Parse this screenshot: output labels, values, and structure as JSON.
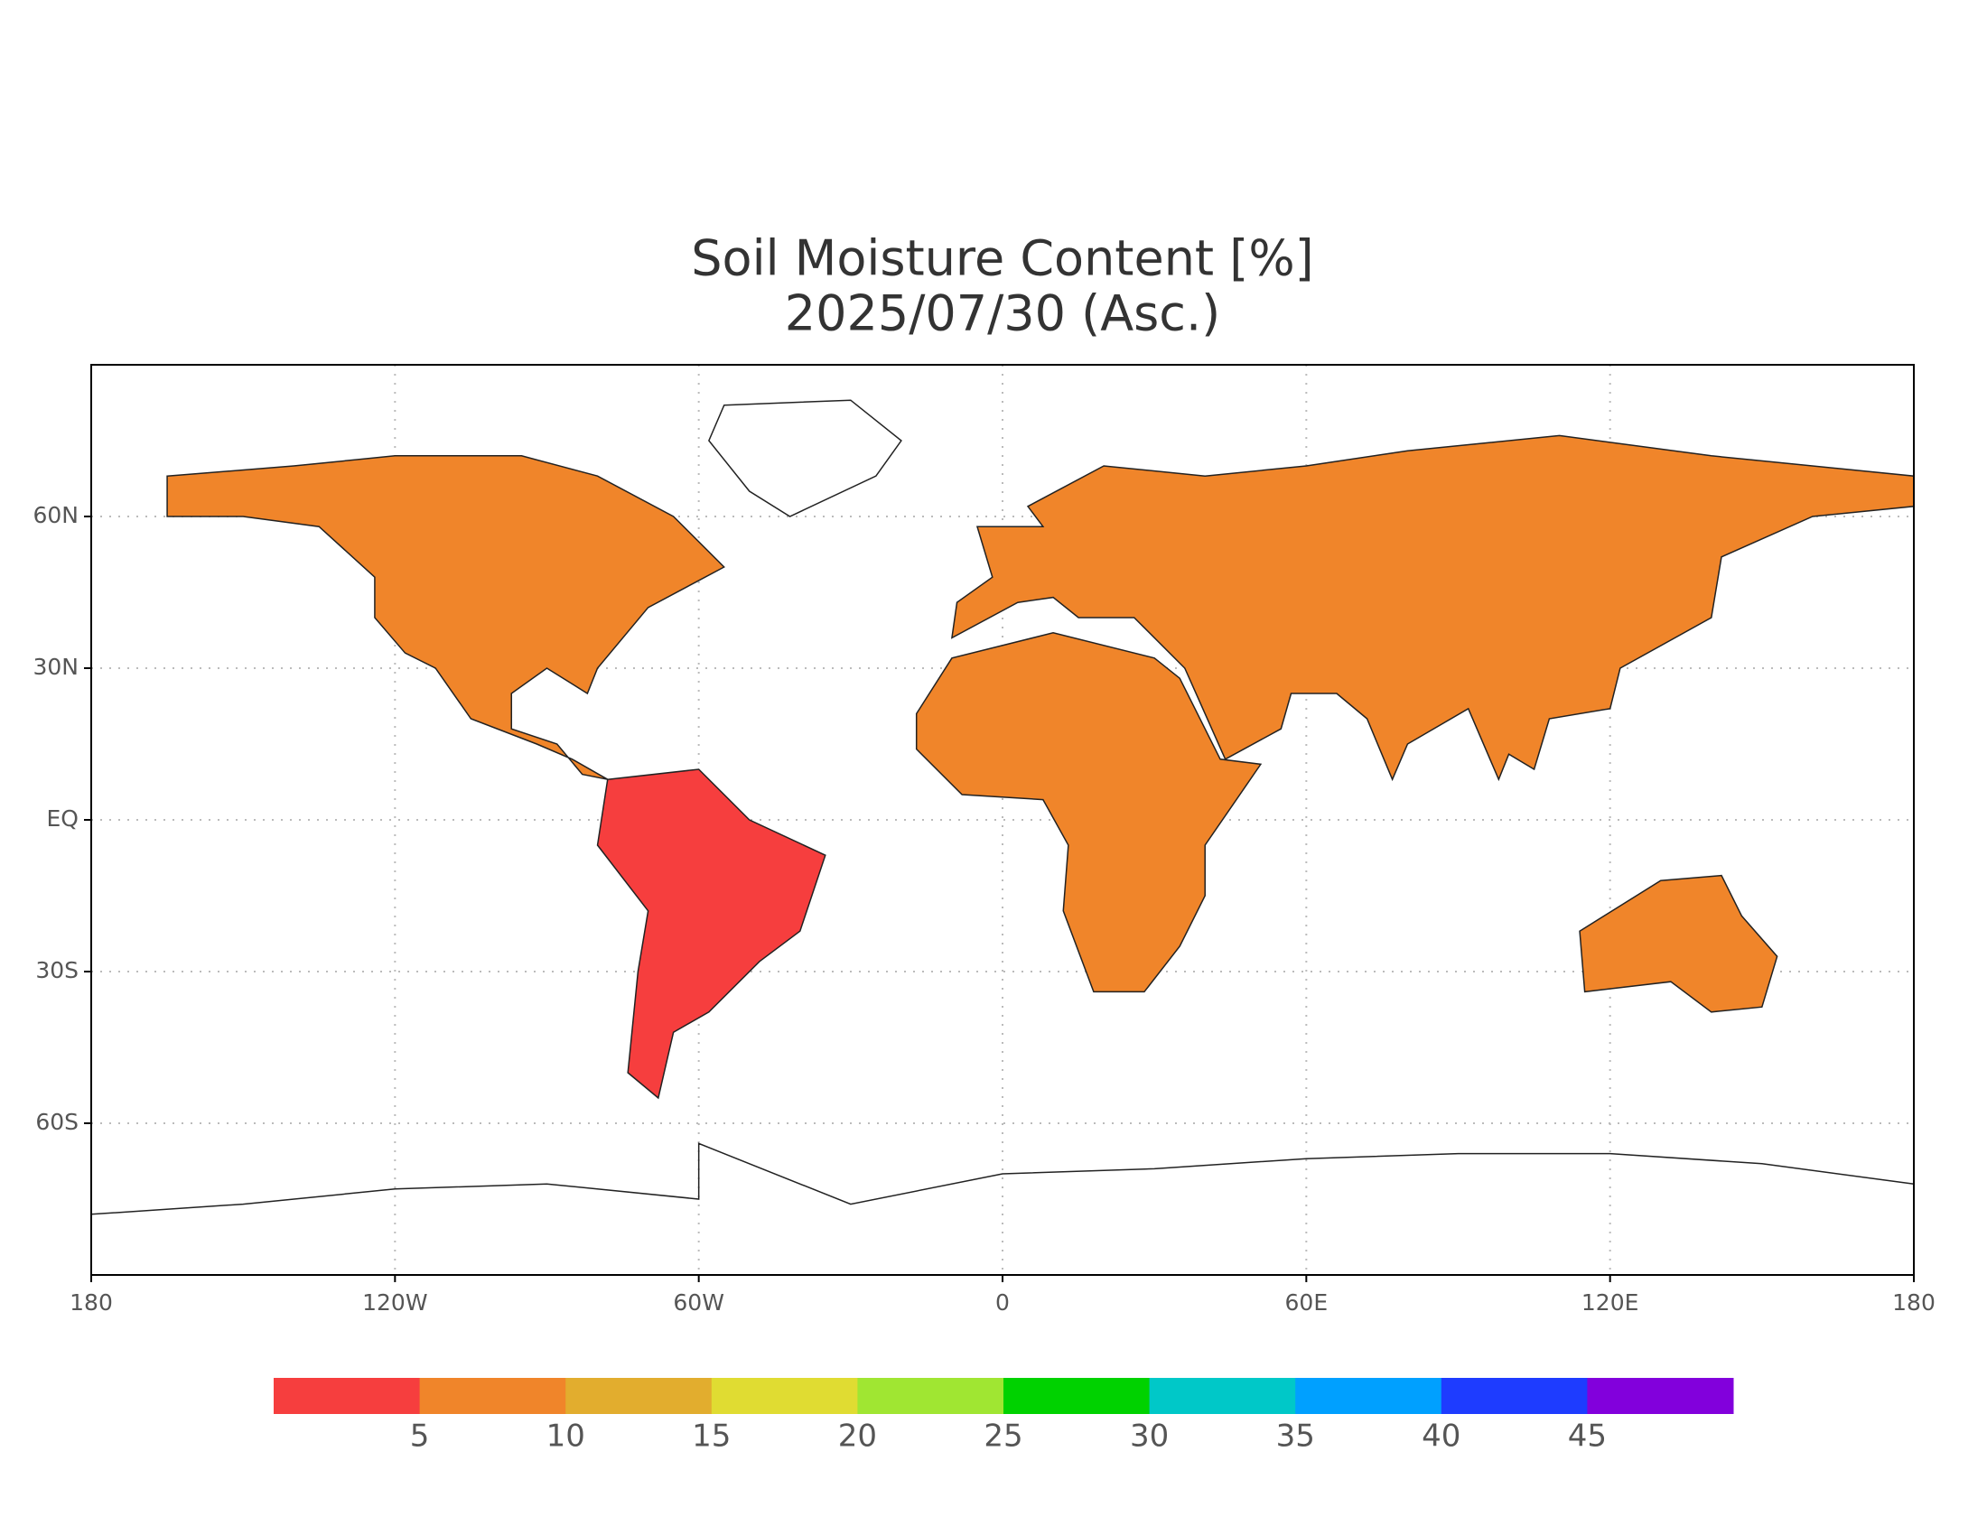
{
  "map": {
    "title": "Soil Moisture Content [%]",
    "subtitle": "2025/07/30 (Asc.)",
    "xlim": [
      -180,
      180
    ],
    "ylim": [
      -90,
      90
    ],
    "xticks": [
      {
        "value": -180,
        "label": "180"
      },
      {
        "value": -120,
        "label": "120W"
      },
      {
        "value": -60,
        "label": "60W"
      },
      0,
      {
        "value": 60,
        "label": "60E"
      },
      {
        "value": 120,
        "label": "120E"
      },
      {
        "value": 180,
        "label": "180"
      }
    ],
    "yticks": [
      {
        "value": 60,
        "label": "60N"
      },
      {
        "value": 30,
        "label": "30N"
      },
      {
        "value": 0,
        "label": "EQ"
      },
      {
        "value": -30,
        "label": "30S"
      },
      {
        "value": -60,
        "label": "60S"
      }
    ],
    "grid": true,
    "colorbar": {
      "colors": [
        "#f63e3e",
        "#f0852a",
        "#e2ad2e",
        "#e0dc32",
        "#a0e632",
        "#00d200",
        "#00c8c8",
        "#00a0ff",
        "#1e3cff",
        "#8200dc"
      ],
      "levels": [
        5,
        10,
        15,
        20,
        25,
        30,
        35,
        40,
        45
      ]
    }
  }
}
